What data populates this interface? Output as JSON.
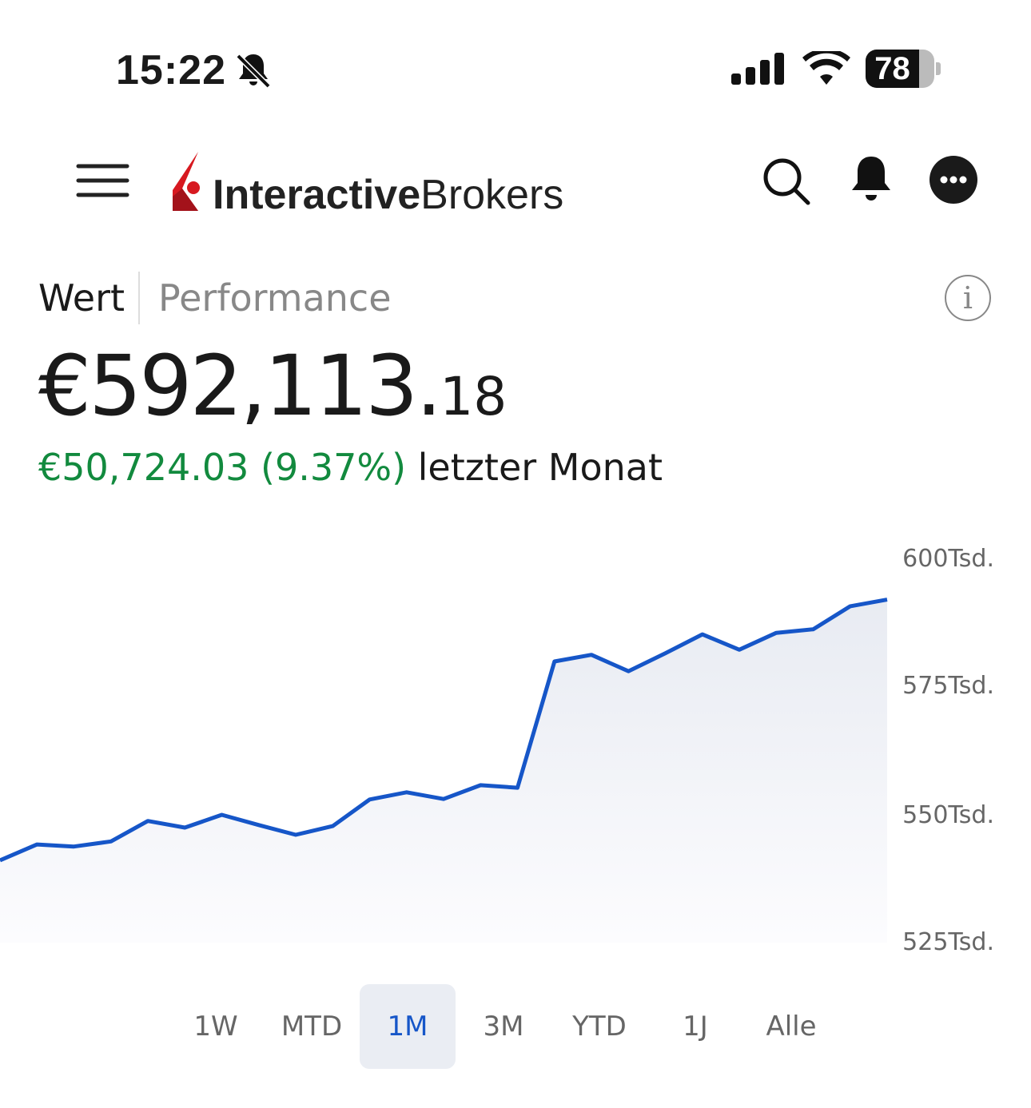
{
  "status_bar": {
    "time": "15:22",
    "battery": "78",
    "icons": [
      "bell-slash-icon",
      "signal-icon",
      "wifi-icon",
      "battery-icon"
    ]
  },
  "header": {
    "logo_text_bold": "Interactive",
    "logo_text_regular": "Brokers",
    "icons": [
      "menu-icon",
      "search-icon",
      "bell-icon",
      "more-icon"
    ]
  },
  "tabs": {
    "value": "Wert",
    "performance": "Performance"
  },
  "portfolio": {
    "value_main": "€592,113.",
    "value_cents": "18",
    "change": "€50,724.03 (9.37%)",
    "change_period": "letzter Monat",
    "change_color": "#128a3e"
  },
  "colors": {
    "line": "#1656c8",
    "active_range": "#1656c8"
  },
  "chart_data": {
    "type": "area",
    "ylim": [
      525,
      600
    ],
    "y_ticks": [
      600,
      575,
      550,
      525
    ],
    "y_tick_labels": [
      "600Tsd.",
      "575Tsd.",
      "550Tsd.",
      "525Tsd."
    ],
    "values": [
      541.1,
      544.2,
      543.8,
      544.8,
      548.8,
      547.5,
      550,
      548,
      546.1,
      547.8,
      553,
      554.4,
      553.1,
      555.8,
      555.3,
      580,
      581.3,
      578.1,
      581.6,
      585.3,
      582.3,
      585.6,
      586.3,
      590.8,
      592.1
    ]
  },
  "ranges": [
    {
      "label": "1W"
    },
    {
      "label": "MTD"
    },
    {
      "label": "1M",
      "active": true
    },
    {
      "label": "3M"
    },
    {
      "label": "YTD"
    },
    {
      "label": "1J"
    },
    {
      "label": "Alle"
    }
  ]
}
